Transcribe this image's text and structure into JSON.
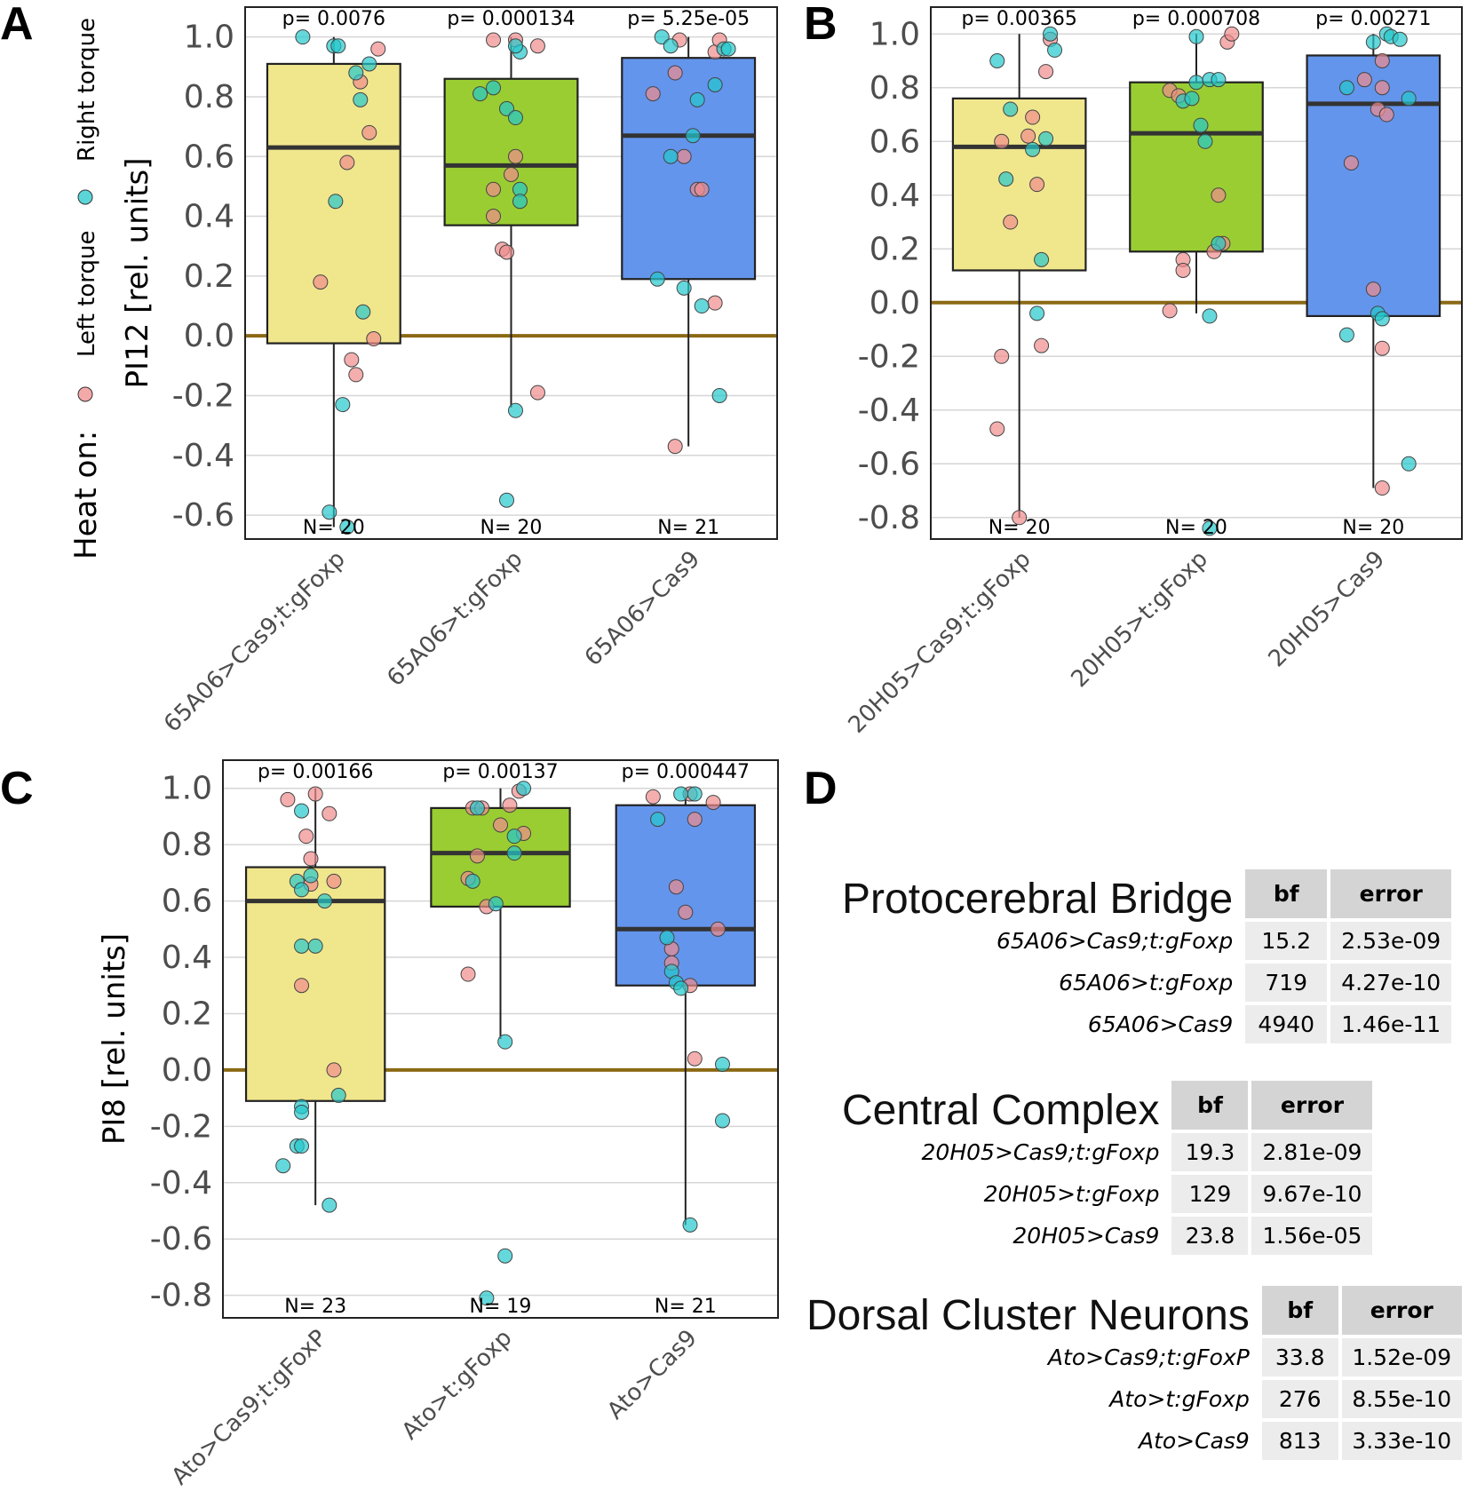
{
  "legend": {
    "title": "Heat on:",
    "items": [
      {
        "label": "Left torque",
        "color": "#f08c8c"
      },
      {
        "label": "Right torque",
        "color": "#23c8cc"
      }
    ]
  },
  "colors": {
    "box_1": "#f0e68c",
    "box_2": "#9acd32",
    "box_3": "#6495ed",
    "zero_line": "#8b6914"
  },
  "chart_data": [
    {
      "type": "box",
      "panel": "A",
      "ylabel": "PI12 [rel. units]",
      "ylim": [
        -0.68,
        1.1
      ],
      "yticks": [
        "1.0",
        "0.8",
        "0.6",
        "0.4",
        "0.2",
        "0.0",
        "-0.2",
        "-0.4",
        "-0.6"
      ],
      "categories": [
        "65A06>Cas9;t:gFoxp",
        "65A06>t:gFoxp",
        "65A06>Cas9"
      ],
      "boxes": [
        {
          "p": "p= 0.0076",
          "n": "N= 20",
          "q1": -0.025,
          "median": 0.63,
          "q3": 0.91,
          "whisker_low": -0.64,
          "whisker_high": 1.0,
          "left": [
            [
              -0.15,
              0.18
            ],
            [
              0.15,
              0.58
            ],
            [
              0.4,
              0.68
            ],
            [
              0.3,
              0.85
            ],
            [
              0.5,
              0.96
            ],
            [
              0.45,
              -0.01
            ],
            [
              0.2,
              -0.08
            ],
            [
              0.25,
              -0.13
            ]
          ],
          "right": [
            [
              -0.35,
              1.0
            ],
            [
              0.0,
              0.97
            ],
            [
              0.05,
              0.97
            ],
            [
              0.25,
              0.88
            ],
            [
              0.3,
              0.79
            ],
            [
              0.4,
              0.91
            ],
            [
              0.02,
              0.45
            ],
            [
              0.33,
              0.08
            ],
            [
              0.1,
              -0.23
            ],
            [
              -0.05,
              -0.59
            ],
            [
              0.15,
              -0.64
            ]
          ]
        },
        {
          "p": "p= 0.000134",
          "n": "N= 20",
          "q1": 0.37,
          "median": 0.57,
          "q3": 0.86,
          "whisker_low": -0.24,
          "whisker_high": 1.0,
          "left": [
            [
              -0.2,
              0.99
            ],
            [
              0.05,
              0.99
            ],
            [
              0.3,
              0.97
            ],
            [
              0.05,
              0.6
            ],
            [
              0.0,
              0.54
            ],
            [
              -0.2,
              0.49
            ],
            [
              -0.2,
              0.4
            ],
            [
              -0.1,
              0.29
            ],
            [
              -0.05,
              0.28
            ],
            [
              0.3,
              -0.19
            ]
          ],
          "right": [
            [
              -0.35,
              0.81
            ],
            [
              -0.2,
              0.83
            ],
            [
              -0.05,
              0.76
            ],
            [
              0.05,
              0.73
            ],
            [
              0.1,
              0.95
            ],
            [
              0.05,
              0.97
            ],
            [
              0.1,
              0.49
            ],
            [
              0.1,
              0.45
            ],
            [
              0.05,
              -0.25
            ],
            [
              -0.05,
              -0.55
            ]
          ]
        },
        {
          "p": "p= 5.25e-05",
          "n": "N= 21",
          "q1": 0.19,
          "median": 0.67,
          "q3": 0.93,
          "whisker_low": -0.37,
          "whisker_high": 1.0,
          "left": [
            [
              -0.4,
              0.81
            ],
            [
              -0.15,
              0.88
            ],
            [
              -0.05,
              0.6
            ],
            [
              0.1,
              0.49
            ],
            [
              0.15,
              0.49
            ],
            [
              0.3,
              0.95
            ],
            [
              0.35,
              0.99
            ],
            [
              0.3,
              0.11
            ],
            [
              -0.15,
              -0.37
            ],
            [
              -0.1,
              0.99
            ]
          ],
          "right": [
            [
              -0.3,
              1.0
            ],
            [
              -0.2,
              0.97
            ],
            [
              0.4,
              0.96
            ],
            [
              0.45,
              0.96
            ],
            [
              0.1,
              0.79
            ],
            [
              0.05,
              0.67
            ],
            [
              -0.2,
              0.6
            ],
            [
              0.3,
              0.84
            ],
            [
              -0.35,
              0.19
            ],
            [
              -0.05,
              0.16
            ],
            [
              0.15,
              0.1
            ],
            [
              0.35,
              -0.2
            ]
          ]
        }
      ]
    },
    {
      "type": "box",
      "panel": "B",
      "ylabel": "",
      "ylim": [
        -0.88,
        1.1
      ],
      "yticks": [
        "1.0",
        "0.8",
        "0.6",
        "0.4",
        "0.2",
        "0.0",
        "-0.2",
        "-0.4",
        "-0.6",
        "-0.8"
      ],
      "categories": [
        "20H05>Cas9;t:gFoxp",
        "20H05>t:gFoxp",
        "20H05>Cas9"
      ],
      "boxes": [
        {
          "p": "p= 0.00365",
          "n": "N= 20",
          "q1": 0.12,
          "median": 0.58,
          "q3": 0.76,
          "whisker_low": -0.8,
          "whisker_high": 1.0,
          "left": [
            [
              -0.2,
              0.6
            ],
            [
              0.1,
              0.62
            ],
            [
              0.15,
              0.69
            ],
            [
              0.3,
              0.86
            ],
            [
              0.35,
              0.98
            ],
            [
              0.2,
              0.44
            ],
            [
              -0.1,
              0.3
            ],
            [
              -0.2,
              -0.2
            ],
            [
              -0.25,
              -0.47
            ],
            [
              0.0,
              -0.8
            ],
            [
              0.25,
              -0.16
            ]
          ],
          "right": [
            [
              -0.25,
              0.9
            ],
            [
              -0.1,
              0.72
            ],
            [
              -0.15,
              0.46
            ],
            [
              0.15,
              0.57
            ],
            [
              0.3,
              0.61
            ],
            [
              0.35,
              1.0
            ],
            [
              0.4,
              0.94
            ],
            [
              0.25,
              0.16
            ],
            [
              0.2,
              -0.04
            ]
          ]
        },
        {
          "p": "p= 0.000708",
          "n": "N= 20",
          "q1": 0.19,
          "median": 0.63,
          "q3": 0.82,
          "whisker_low": -0.04,
          "whisker_high": 1.0,
          "left": [
            [
              -0.3,
              0.79
            ],
            [
              -0.2,
              0.77
            ],
            [
              0.35,
              0.97
            ],
            [
              0.4,
              1.0
            ],
            [
              0.25,
              0.4
            ],
            [
              0.3,
              0.22
            ],
            [
              0.2,
              0.19
            ],
            [
              -0.15,
              0.16
            ],
            [
              -0.15,
              0.12
            ],
            [
              -0.3,
              -0.03
            ]
          ],
          "right": [
            [
              -0.15,
              0.75
            ],
            [
              -0.05,
              0.76
            ],
            [
              0.05,
              0.66
            ],
            [
              0.0,
              0.82
            ],
            [
              0.15,
              0.83
            ],
            [
              0.25,
              0.83
            ],
            [
              0.0,
              0.99
            ],
            [
              0.1,
              0.6
            ],
            [
              0.25,
              0.22
            ],
            [
              0.15,
              -0.05
            ],
            [
              0.15,
              -0.84
            ]
          ]
        },
        {
          "p": "p= 0.00271",
          "n": "N= 20",
          "q1": -0.05,
          "median": 0.74,
          "q3": 0.92,
          "whisker_low": -0.69,
          "whisker_high": 1.0,
          "left": [
            [
              -0.25,
              0.52
            ],
            [
              -0.1,
              0.83
            ],
            [
              0.05,
              0.72
            ],
            [
              0.1,
              0.9
            ],
            [
              0.1,
              0.8
            ],
            [
              0.15,
              0.7
            ],
            [
              0.0,
              0.05
            ],
            [
              0.1,
              -0.17
            ],
            [
              0.1,
              -0.69
            ]
          ],
          "right": [
            [
              -0.3,
              0.8
            ],
            [
              0.0,
              0.97
            ],
            [
              0.15,
              1.0
            ],
            [
              0.2,
              0.99
            ],
            [
              0.3,
              0.98
            ],
            [
              0.4,
              0.76
            ],
            [
              0.05,
              -0.04
            ],
            [
              0.1,
              -0.06
            ],
            [
              -0.3,
              -0.12
            ],
            [
              0.4,
              -0.6
            ]
          ]
        }
      ]
    },
    {
      "type": "box",
      "panel": "C",
      "ylabel": "PI8 [rel. units]",
      "ylim": [
        -0.88,
        1.1
      ],
      "yticks": [
        "1.0",
        "0.8",
        "0.6",
        "0.4",
        "0.2",
        "0.0",
        "-0.2",
        "-0.4",
        "-0.6",
        "-0.8"
      ],
      "categories": [
        "Ato>Cas9;t:gFoxP",
        "Ato>t:gFoxp",
        "Ato>Cas9"
      ],
      "boxes": [
        {
          "p": "p= 0.00166",
          "n": "N= 23",
          "q1": -0.11,
          "median": 0.6,
          "q3": 0.72,
          "whisker_low": -0.48,
          "whisker_high": 1.0,
          "left": [
            [
              -0.3,
              0.96
            ],
            [
              0.0,
              0.98
            ],
            [
              -0.1,
              0.83
            ],
            [
              -0.05,
              0.75
            ],
            [
              0.15,
              0.91
            ],
            [
              -0.05,
              0.66
            ],
            [
              0.2,
              0.67
            ],
            [
              -0.15,
              0.3
            ],
            [
              0.2,
              0.0
            ]
          ],
          "right": [
            [
              -0.15,
              0.92
            ],
            [
              -0.2,
              0.67
            ],
            [
              -0.15,
              0.64
            ],
            [
              -0.05,
              0.69
            ],
            [
              0.1,
              0.6
            ],
            [
              -0.15,
              0.44
            ],
            [
              0.0,
              0.44
            ],
            [
              0.25,
              -0.09
            ],
            [
              -0.15,
              -0.13
            ],
            [
              -0.15,
              -0.15
            ],
            [
              -0.2,
              -0.27
            ],
            [
              -0.15,
              -0.27
            ],
            [
              -0.35,
              -0.34
            ],
            [
              0.15,
              -0.48
            ]
          ]
        },
        {
          "p": "p= 0.00137",
          "n": "N= 19",
          "q1": 0.58,
          "median": 0.77,
          "q3": 0.93,
          "whisker_low": 0.11,
          "whisker_high": 1.0,
          "left": [
            [
              -0.3,
              0.93
            ],
            [
              -0.2,
              0.93
            ],
            [
              0.1,
              0.94
            ],
            [
              0.2,
              0.99
            ],
            [
              0.0,
              0.87
            ],
            [
              0.25,
              0.84
            ],
            [
              -0.25,
              0.76
            ],
            [
              -0.35,
              0.68
            ],
            [
              -0.15,
              0.58
            ],
            [
              -0.35,
              0.34
            ]
          ],
          "right": [
            [
              -0.25,
              0.93
            ],
            [
              0.25,
              1.0
            ],
            [
              0.15,
              0.83
            ],
            [
              0.15,
              0.77
            ],
            [
              -0.3,
              0.67
            ],
            [
              -0.05,
              0.59
            ],
            [
              0.05,
              0.1
            ],
            [
              0.05,
              -0.66
            ],
            [
              -0.15,
              -0.81
            ]
          ]
        },
        {
          "p": "p= 0.000447",
          "n": "N= 21",
          "q1": 0.3,
          "median": 0.5,
          "q3": 0.94,
          "whisker_low": -0.55,
          "whisker_high": 1.0,
          "left": [
            [
              -0.35,
              0.97
            ],
            [
              0.05,
              0.98
            ],
            [
              0.1,
              0.89
            ],
            [
              0.3,
              0.95
            ],
            [
              -0.1,
              0.65
            ],
            [
              0.0,
              0.56
            ],
            [
              0.35,
              0.5
            ],
            [
              -0.15,
              0.43
            ],
            [
              -0.15,
              0.38
            ],
            [
              0.05,
              0.3
            ],
            [
              0.1,
              0.04
            ]
          ],
          "right": [
            [
              -0.3,
              0.89
            ],
            [
              -0.05,
              0.98
            ],
            [
              0.1,
              0.98
            ],
            [
              -0.2,
              0.47
            ],
            [
              -0.15,
              0.35
            ],
            [
              -0.1,
              0.31
            ],
            [
              -0.05,
              0.29
            ],
            [
              0.4,
              0.02
            ],
            [
              0.4,
              -0.18
            ],
            [
              0.05,
              -0.55
            ]
          ]
        }
      ]
    }
  ],
  "tables": [
    {
      "title": "Protocerebral Bridge",
      "headers": [
        "bf",
        "error"
      ],
      "rows": [
        {
          "label": "65A06>Cas9;t:gFoxp",
          "bf": "15.2",
          "error": "2.53e-09"
        },
        {
          "label": "65A06>t:gFoxp",
          "bf": "719",
          "error": "4.27e-10"
        },
        {
          "label": "65A06>Cas9",
          "bf": "4940",
          "error": "1.46e-11"
        }
      ]
    },
    {
      "title": "Central Complex",
      "headers": [
        "bf",
        "error"
      ],
      "rows": [
        {
          "label": "20H05>Cas9;t:gFoxp",
          "bf": "19.3",
          "error": "2.81e-09"
        },
        {
          "label": "20H05>t:gFoxp",
          "bf": "129",
          "error": "9.67e-10"
        },
        {
          "label": "20H05>Cas9",
          "bf": "23.8",
          "error": "1.56e-05"
        }
      ]
    },
    {
      "title": "Dorsal Cluster Neurons",
      "headers": [
        "bf",
        "error"
      ],
      "rows": [
        {
          "label": "Ato>Cas9;t:gFoxP",
          "bf": "33.8",
          "error": "1.52e-09"
        },
        {
          "label": "Ato>t:gFoxp",
          "bf": "276",
          "error": "8.55e-10"
        },
        {
          "label": "Ato>Cas9",
          "bf": "813",
          "error": "3.33e-10"
        }
      ]
    }
  ],
  "panel_letters": {
    "a": "A",
    "b": "B",
    "c": "C",
    "d": "D"
  }
}
